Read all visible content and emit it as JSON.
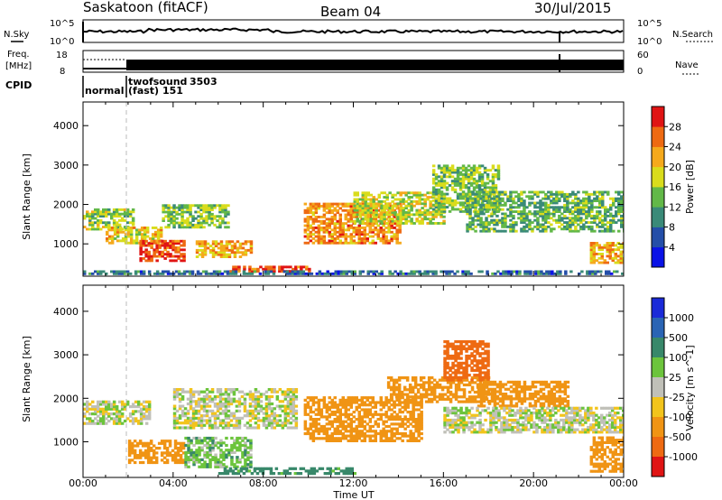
{
  "header": {
    "station": "Saskatoon (fitACF)",
    "beam": "Beam 04",
    "date": "30/Jul/2015"
  },
  "strip_labels": {
    "nsky": "N.Sky",
    "nsky_ticks": [
      "10^5",
      "10^0"
    ],
    "nsearch": "N.Search",
    "nsearch_ticks": [
      "10^5",
      "10^0"
    ],
    "freq_label_1": "Freq.",
    "freq_label_2": "[MHz]",
    "freq_ticks": [
      "18",
      "8"
    ],
    "nave": "Nave",
    "nave_ticks": [
      "60",
      "0"
    ],
    "cpid": "CPID",
    "cpid_modes": [
      {
        "name": "normal",
        "id": ""
      },
      {
        "name": "twofsound",
        "id": "3503"
      },
      {
        "name": "(fast)",
        "id": "151"
      }
    ]
  },
  "x_axis": {
    "label": "Time UT",
    "ticks": [
      "00:00",
      "04:00",
      "08:00",
      "12:00",
      "16:00",
      "20:00",
      "00:00"
    ]
  },
  "y_axis": {
    "label": "Slant Range [km]",
    "ticks": [
      "1000",
      "2000",
      "3000",
      "4000"
    ]
  },
  "colorbar_power": {
    "label": "Power [dB]",
    "ticks": [
      "4",
      "8",
      "12",
      "16",
      "20",
      "24",
      "28"
    ],
    "colors": [
      "#0a12e6",
      "#244ea8",
      "#3a8a78",
      "#62b848",
      "#d9dc1c",
      "#f5a91c",
      "#ee6a12",
      "#e01414"
    ]
  },
  "colorbar_velocity": {
    "label": "Velocity [m s^-1]",
    "ticks": [
      "1000",
      "500",
      "100",
      "25",
      "-25",
      "-100",
      "-500",
      "-1000"
    ],
    "colors": [
      "#1a2ad8",
      "#2a64b4",
      "#38886a",
      "#6cc43c",
      "#c0c0b8",
      "#f2c41c",
      "#f09414",
      "#ee6a12",
      "#e01414"
    ]
  },
  "chart_data": [
    {
      "type": "heatmap",
      "quantity": "Power",
      "units": "dB",
      "xlabel": "Time UT",
      "ylabel": "Slant Range [km]",
      "x_range_hours": [
        0,
        24
      ],
      "y_range_km": [
        180,
        4600
      ],
      "color_scale": [
        0,
        30
      ],
      "regions": [
        {
          "t": [
            0.0,
            2.2
          ],
          "r": [
            1350,
            1850
          ],
          "v": 16
        },
        {
          "t": [
            1.0,
            3.5
          ],
          "r": [
            1000,
            1400
          ],
          "v": 20
        },
        {
          "t": [
            2.5,
            4.5
          ],
          "r": [
            550,
            1050
          ],
          "v": 28
        },
        {
          "t": [
            3.5,
            6.5
          ],
          "r": [
            1400,
            2000
          ],
          "v": 15
        },
        {
          "t": [
            5.0,
            7.5
          ],
          "r": [
            650,
            1050
          ],
          "v": 22
        },
        {
          "t": [
            6.5,
            10.0
          ],
          "r": [
            280,
            420
          ],
          "v": 28
        },
        {
          "t": [
            0.0,
            24.0
          ],
          "r": [
            220,
            300
          ],
          "v": 8
        },
        {
          "t": [
            9.8,
            14.0
          ],
          "r": [
            1000,
            2000
          ],
          "v": 24
        },
        {
          "t": [
            12.0,
            16.0
          ],
          "r": [
            1500,
            2300
          ],
          "v": 17
        },
        {
          "t": [
            15.5,
            18.5
          ],
          "r": [
            1800,
            3000
          ],
          "v": 15
        },
        {
          "t": [
            17.0,
            24.0
          ],
          "r": [
            1300,
            2300
          ],
          "v": 13
        },
        {
          "t": [
            22.5,
            24.0
          ],
          "r": [
            500,
            1000
          ],
          "v": 22
        }
      ]
    },
    {
      "type": "heatmap",
      "quantity": "Velocity",
      "units": "m s^-1",
      "xlabel": "Time UT",
      "ylabel": "Slant Range [km]",
      "x_range_hours": [
        0,
        24
      ],
      "y_range_km": [
        180,
        4600
      ],
      "color_scale": [
        -1000,
        1000
      ],
      "regions": [
        {
          "t": [
            0.0,
            3.0
          ],
          "r": [
            1400,
            1950
          ],
          "v": 0
        },
        {
          "t": [
            2.0,
            4.5
          ],
          "r": [
            500,
            1000
          ],
          "v": -200
        },
        {
          "t": [
            4.5,
            7.5
          ],
          "r": [
            400,
            1100
          ],
          "v": 60
        },
        {
          "t": [
            4.0,
            9.5
          ],
          "r": [
            1300,
            2200
          ],
          "v": 0
        },
        {
          "t": [
            6.0,
            12.0
          ],
          "r": [
            250,
            400
          ],
          "v": 150
        },
        {
          "t": [
            9.8,
            15.0
          ],
          "r": [
            1000,
            2000
          ],
          "v": -300
        },
        {
          "t": [
            13.5,
            18.0
          ],
          "r": [
            1900,
            2500
          ],
          "v": -300
        },
        {
          "t": [
            16.0,
            18.0
          ],
          "r": [
            2400,
            3300
          ],
          "v": -600
        },
        {
          "t": [
            17.5,
            21.5
          ],
          "r": [
            1800,
            2400
          ],
          "v": -300
        },
        {
          "t": [
            16.0,
            24.0
          ],
          "r": [
            1200,
            1800
          ],
          "v": 0
        },
        {
          "t": [
            22.5,
            24.0
          ],
          "r": [
            300,
            1100
          ],
          "v": -300
        }
      ]
    }
  ]
}
